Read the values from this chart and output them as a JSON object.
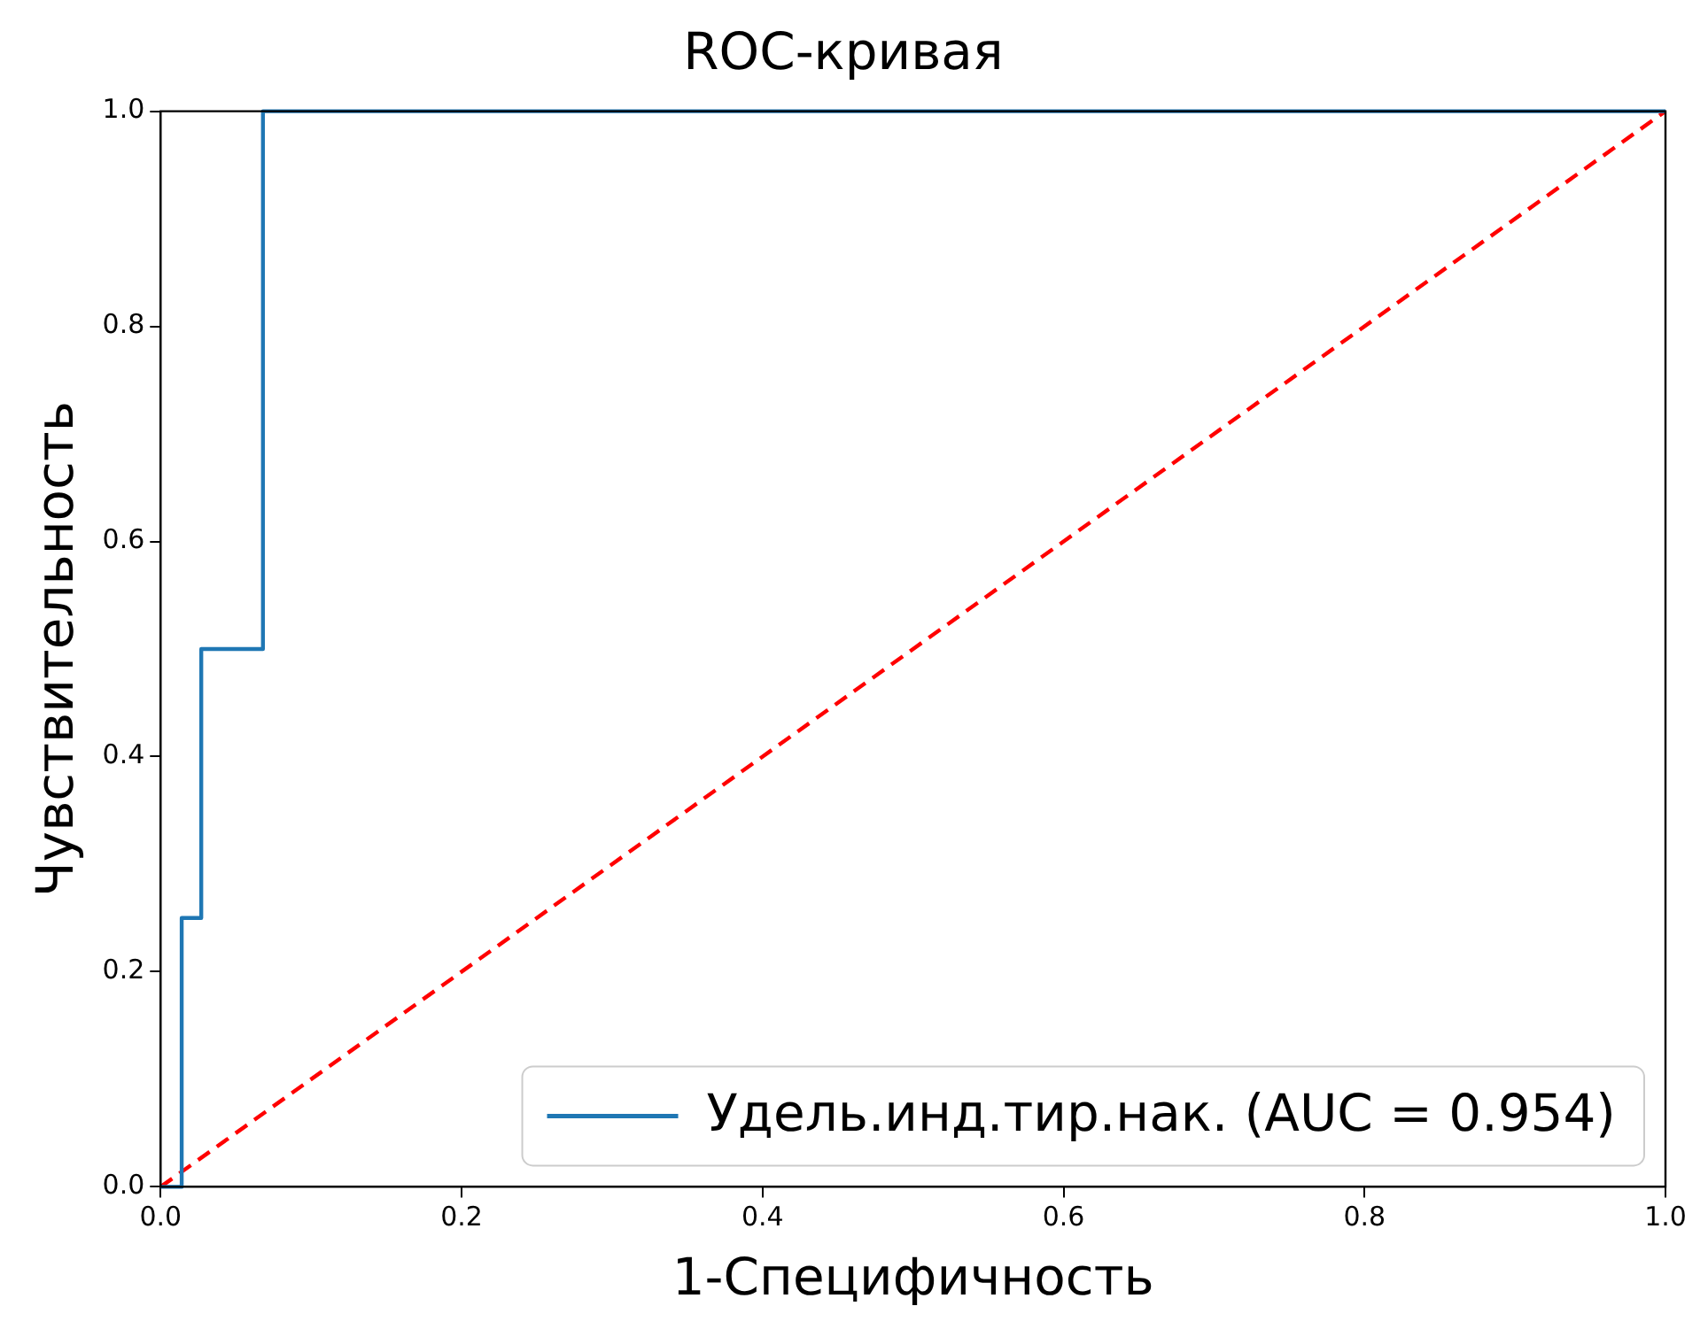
{
  "chart_data": {
    "type": "line",
    "title": "ROC-кривая",
    "xlabel": "1-Специфичность",
    "ylabel": "Чувствительность",
    "series": [
      {
        "name": "Удель.инд.тир.нак. (AUC = 0.954)",
        "color": "#1f77b4",
        "x": [
          0,
          0.014,
          0.014,
          0.027,
          0.027,
          0.068,
          0.068,
          1
        ],
        "values": [
          0,
          0,
          0.25,
          0.25,
          0.5,
          0.5,
          1,
          1
        ],
        "line_style": "solid"
      },
      {
        "color": "#ff0000",
        "x": [
          0,
          1
        ],
        "values": [
          0,
          1
        ],
        "line_style": "dashed"
      }
    ],
    "xlim": [
      0,
      1
    ],
    "ylim": [
      0,
      1
    ],
    "xticks": [
      {
        "value": 0,
        "label": "0.0"
      },
      {
        "value": 0.2,
        "label": "0.2"
      },
      {
        "value": 0.4,
        "label": "0.4"
      },
      {
        "value": 0.6,
        "label": "0.6"
      },
      {
        "value": 0.8,
        "label": "0.8"
      },
      {
        "value": 1,
        "label": "1.0"
      }
    ],
    "yticks": [
      {
        "value": 0,
        "label": "0.0"
      },
      {
        "value": 0.2,
        "label": "0.2"
      },
      {
        "value": 0.4,
        "label": "0.4"
      },
      {
        "value": 0.6,
        "label": "0.6"
      },
      {
        "value": 0.8,
        "label": "0.8"
      },
      {
        "value": 1,
        "label": "1.0"
      }
    ],
    "grid": false,
    "legend": "bottom right",
    "marker": "none"
  }
}
